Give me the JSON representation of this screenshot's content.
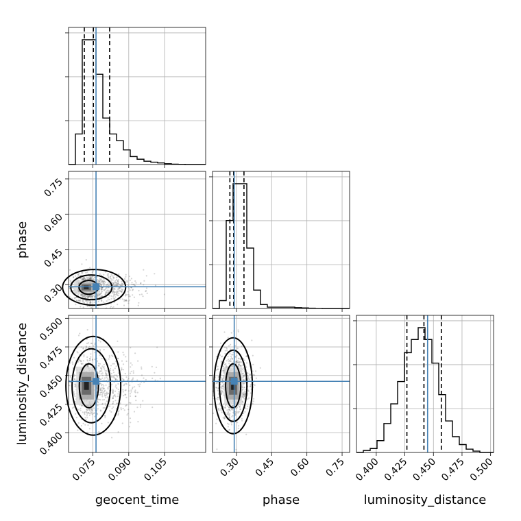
{
  "chart_data": {
    "type": "corner",
    "parameters": [
      "geocent_time",
      "phase",
      "luminosity_distance"
    ],
    "axis_labels": [
      "geocent_time",
      "phase",
      "luminosity_distance"
    ],
    "ranges": {
      "geocent_time": [
        0.0648,
        0.1222
      ],
      "phase": [
        0.198,
        0.782
      ],
      "luminosity_distance": [
        0.3827,
        0.5026
      ]
    },
    "ticks": {
      "geocent_time": [
        "0.075",
        "0.090",
        "0.105"
      ],
      "phase": [
        "0.30",
        "0.45",
        "0.60",
        "0.75"
      ],
      "luminosity_distance": [
        "0.400",
        "0.425",
        "0.450",
        "0.475",
        "0.500"
      ]
    },
    "truths": {
      "geocent_time": 0.0763,
      "phase": 0.2905,
      "luminosity_distance": 0.4449
    },
    "quantiles": {
      "geocent_time": [
        0.0714,
        0.0752,
        0.082
      ],
      "phase": [
        0.272,
        0.288,
        0.332
      ],
      "luminosity_distance": [
        0.4268,
        0.4417,
        0.4569
      ]
    },
    "histograms": {
      "geocent_time": {
        "edges_range": [
          0.0648,
          0.1222
        ],
        "counts": [
          0,
          23,
          94,
          94,
          68,
          35,
          23,
          18,
          11,
          6,
          4,
          2.5,
          1.8,
          1.2,
          0.6,
          0.3,
          0.15,
          0,
          0,
          0
        ]
      },
      "phase": {
        "edges_range": [
          0.198,
          0.782
        ],
        "counts": [
          0,
          6,
          67,
          95,
          95,
          46,
          14,
          3,
          1,
          1,
          1,
          1,
          0.6,
          0.4,
          0.2,
          0.1,
          0,
          0,
          0,
          0
        ]
      },
      "luminosity_distance": {
        "edges_range": [
          0.3827,
          0.5026
        ],
        "counts": [
          0,
          1.5,
          3,
          9,
          22,
          37,
          54,
          76,
          86,
          95,
          86,
          68,
          44,
          24,
          12,
          6,
          2.5,
          1,
          0,
          0
        ]
      }
    },
    "scatter_centers": {
      "geocent_time_vs_phase": [
        0.0722,
        0.288
      ],
      "geocent_time_vs_luminosity_distance": [
        0.0723,
        0.441
      ],
      "phase_vs_luminosity_distance": [
        0.286,
        0.441
      ]
    },
    "grid": true
  }
}
